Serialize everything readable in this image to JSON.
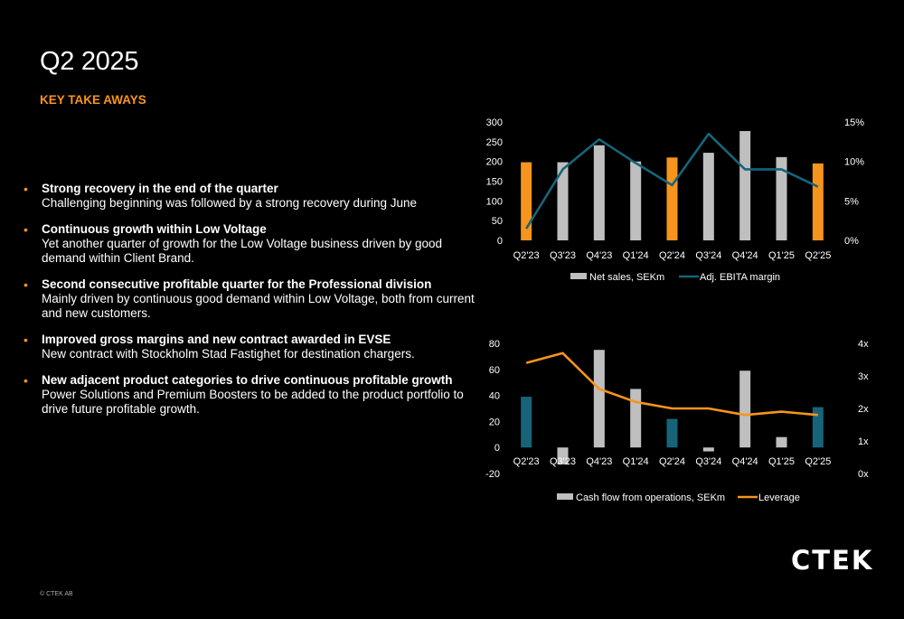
{
  "page": {
    "title": "Q2 2025",
    "subtitle": "KEY TAKE  AWAYS",
    "logo": "CTEK",
    "copyright": "© CTEK AB"
  },
  "colors": {
    "accent": "#f7941d",
    "gray_bar": "#bfbfbf",
    "teal": "#17647a",
    "background": "#000000"
  },
  "bullets": [
    {
      "head": "Strong recovery in the end of the quarter",
      "body": "Challenging beginning was followed by a strong recovery during June"
    },
    {
      "head": "Continuous growth within Low Voltage",
      "body": "Yet another quarter of growth for the Low Voltage business driven by good demand within Client Brand."
    },
    {
      "head": "Second consecutive profitable quarter for the Professional division",
      "body": "Mainly driven by continuous good demand within Low Voltage, both from current and new customers."
    },
    {
      "head": "Improved gross margins and new contract awarded in EVSE",
      "body": "New contract with Stockholm Stad Fastighet for destination chargers."
    },
    {
      "head": "New adjacent product categories to drive continuous profitable growth",
      "body": "Power Solutions and Premium Boosters to be added to the product portfolio to drive future profitable growth."
    }
  ],
  "chart_data": [
    {
      "type": "bar",
      "categories": [
        "Q2'23",
        "Q3'23",
        "Q4'23",
        "Q1'24",
        "Q2'24",
        "Q3'24",
        "Q4'24",
        "Q1'25",
        "Q2'25"
      ],
      "series": [
        {
          "name": "Net sales, SEKm",
          "kind": "bar",
          "axis": "left",
          "values": [
            198,
            198,
            241,
            200,
            210,
            222,
            277,
            211,
            195
          ],
          "highlight": [
            0,
            4,
            8
          ]
        },
        {
          "name": "Adj. EBITA margin",
          "kind": "line",
          "axis": "right",
          "values": [
            1.5,
            9.0,
            12.8,
            9.8,
            7.0,
            13.5,
            9.0,
            9.0,
            6.8
          ]
        }
      ],
      "y_left": {
        "ticks": [
          "0",
          "50",
          "100",
          "150",
          "200",
          "250",
          "300"
        ],
        "min": 0,
        "max": 300
      },
      "y_right": {
        "ticks": [
          "0%",
          "5%",
          "10%",
          "15%"
        ],
        "min": 0,
        "max": 15
      },
      "legend": "bottom"
    },
    {
      "type": "bar",
      "categories": [
        "Q2'23",
        "Q3'23",
        "Q4'23",
        "Q1'24",
        "Q2'24",
        "Q3'24",
        "Q4'24",
        "Q1'25",
        "Q2'25"
      ],
      "series": [
        {
          "name": "Cash flow from operations, SEKm",
          "kind": "bar",
          "axis": "left",
          "values": [
            39,
            -13,
            75,
            45,
            22,
            -3,
            59,
            8,
            31
          ],
          "highlight": [
            0,
            4,
            8
          ]
        },
        {
          "name": "Leverage",
          "kind": "line",
          "axis": "right",
          "values": [
            3.4,
            3.7,
            2.6,
            2.2,
            2.0,
            2.0,
            1.8,
            1.9,
            1.8
          ]
        }
      ],
      "y_left": {
        "ticks": [
          "-20",
          "0",
          "20",
          "40",
          "60",
          "80"
        ],
        "min": -20,
        "max": 80
      },
      "y_right": {
        "ticks": [
          "0x",
          "1x",
          "2x",
          "3x",
          "4x"
        ],
        "min": 0,
        "max": 4
      },
      "legend": "bottom"
    }
  ]
}
